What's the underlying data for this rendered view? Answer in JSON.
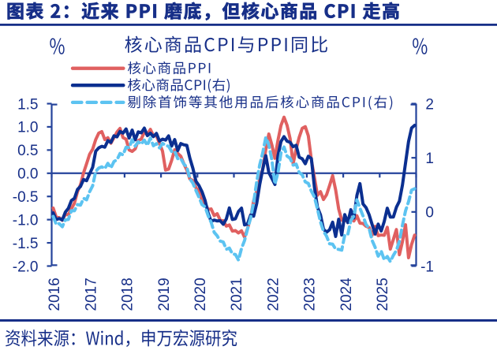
{
  "header": {
    "title": "图表 2：近来 PPI 磨底，但核心商品 CPI 走高"
  },
  "footer": {
    "source": "资料来源：Wind，申万宏源研究"
  },
  "colors": {
    "navy_text": "#172f88",
    "axis": "#24439b",
    "series_ppi": "#e06060",
    "series_cpi": "#0b2f90",
    "series_cpi_ex": "#5cc3f1",
    "background": "#ffffff"
  },
  "chart_data": {
    "type": "line",
    "title": "核心商品CPI与PPI同比",
    "x_unit": "month",
    "x_start": "2016-01",
    "x_end": "2025-12",
    "x_tick_labels": [
      "2016",
      "2017",
      "2018",
      "2019",
      "2020",
      "2021",
      "2022",
      "2023",
      "2024",
      "2025"
    ],
    "left_axis": {
      "label": "%",
      "min": -2.0,
      "max": 1.5,
      "tick_step": 0.5,
      "tick_labels": [
        "1.5",
        "1.0",
        "0.5",
        "0.0",
        "-0.5",
        "-1.0",
        "-1.5",
        "-2.0"
      ]
    },
    "right_axis": {
      "label": "%",
      "min": -1.0,
      "max": 2.0,
      "tick_step": 1.0,
      "tick_labels": [
        "2",
        "1",
        "0",
        "-1"
      ]
    },
    "grid": false,
    "legend_position": "top-left",
    "series": [
      {
        "name": "核心商品PPI",
        "axis": "left",
        "color": "#e06060",
        "style": "solid",
        "values": [
          -0.749,
          -0.947,
          -0.957,
          -1.015,
          -0.885,
          -0.896,
          -0.764,
          -0.641,
          -0.398,
          -0.245,
          0.009,
          0.206,
          0.411,
          0.519,
          0.726,
          0.865,
          0.898,
          0.726,
          0.766,
          0.647,
          0.766,
          0.888,
          0.966,
          0.767,
          0.735,
          0.503,
          0.47,
          0.525,
          0.704,
          0.738,
          0.887,
          0.829,
          0.947,
          0.809,
          0.807,
          0.644,
          0.474,
          0.07,
          0.089,
          0.277,
          0.505,
          0.427,
          0.369,
          0.209,
          0.069,
          -0.122,
          -0.159,
          -0.313,
          -0.382,
          -0.586,
          -0.649,
          -0.78,
          -0.769,
          -0.914,
          -0.872,
          -1.011,
          -1.023,
          -1.14,
          -1.114,
          -1.247,
          -1.236,
          -1.286,
          -1.239,
          -1.378,
          -1.189,
          -0.96,
          -0.592,
          -0.388,
          -0.127,
          0.092,
          0.513,
          0.846,
          0.61,
          0.323,
          0.707,
          1.03,
          1.209,
          1.034,
          0.747,
          0.202,
          0.523,
          0.776,
          0.969,
          1.004,
          0.808,
          0.291,
          -0.083,
          -0.475,
          -0.397,
          -0.566,
          -0.464,
          -0.264,
          -0.051,
          -0.36,
          -0.77,
          -1.012,
          -1.026,
          -1.018,
          -0.965,
          -1.029,
          -0.916,
          -1.076,
          -1.083,
          -1.143,
          -1.167,
          -1.337,
          -1.144,
          -1.345,
          -1.33,
          -1.337,
          -1.165,
          -1.635,
          -1.427,
          -1.213,
          -1.755,
          -1.471,
          -1.11,
          -1.821,
          -1.535,
          -1.334
        ]
      },
      {
        "name": "核心商品CPI(右)",
        "axis": "right",
        "color": "#0b2f90",
        "style": "solid",
        "values": [
          -0.018,
          -0.141,
          -0.122,
          -0.149,
          -0.004,
          0.067,
          0.21,
          0.25,
          0.415,
          0.472,
          0.599,
          0.577,
          0.705,
          0.825,
          1.121,
          1.184,
          1.212,
          1.196,
          1.316,
          1.285,
          1.406,
          1.387,
          1.487,
          1.456,
          1.533,
          1.365,
          1.512,
          1.332,
          1.478,
          1.461,
          1.548,
          1.41,
          1.455,
          1.392,
          1.45,
          1.309,
          1.344,
          1.327,
          1.405,
          1.216,
          1.336,
          1.133,
          1.263,
          1.24,
          1.23,
          0.993,
          0.804,
          0.568,
          0.487,
          0.373,
          0.214,
          -0.018,
          -0.176,
          -0.15,
          -0.167,
          -0.163,
          -0.228,
          -0.13,
          0.073,
          -0.139,
          -0.126,
          0.007,
          0.07,
          -0.24,
          -0.22,
          -0.058,
          -0.078,
          0.153,
          0.508,
          0.791,
          1.039,
          0.726,
          0.619,
          0.507,
          1.036,
          1.301,
          1.391,
          1.306,
          1.286,
          1.205,
          1.23,
          1.01,
          0.982,
          0.89,
          1.028,
          0.987,
          0.463,
          0.086,
          -0.053,
          -0.319,
          -0.375,
          -0.33,
          -0.189,
          -0.453,
          -0.135,
          -0.426,
          -0.05,
          -0.198,
          0.04,
          -0.111,
          0.305,
          0.523,
          0.148,
          0.08,
          -0.048,
          -0.231,
          -0.409,
          -0.225,
          -0.353,
          -0.176,
          0.069,
          -0.095,
          -0.093,
          0.086,
          0.2,
          0.5,
          0.9,
          1.3,
          1.55,
          1.6
        ]
      },
      {
        "name": "剔除首饰等其他用品后核心商品CPI(右)",
        "axis": "right",
        "color": "#5cc3f1",
        "style": "dashed",
        "values": [
          -0.083,
          -0.232,
          -0.217,
          -0.274,
          -0.147,
          -0.14,
          0.023,
          0.021,
          0.136,
          0.125,
          0.251,
          0.224,
          0.374,
          0.484,
          0.748,
          0.81,
          0.833,
          0.8,
          0.897,
          0.812,
          0.93,
          0.964,
          1.079,
          1.054,
          1.196,
          1.188,
          1.332,
          1.215,
          1.296,
          1.252,
          1.327,
          1.229,
          1.366,
          1.222,
          1.261,
          1.183,
          1.267,
          1.231,
          1.213,
          1.117,
          1.122,
          0.984,
          0.99,
          0.885,
          0.829,
          0.612,
          0.531,
          0.396,
          0.272,
          0.135,
          0.093,
          -0.066,
          -0.191,
          -0.376,
          -0.442,
          -0.539,
          -0.556,
          -0.69,
          -0.668,
          -0.775,
          -0.786,
          -0.89,
          -0.675,
          -0.529,
          -0.314,
          -0.113,
          0.176,
          0.554,
          0.87,
          1.094,
          1.379,
          1.234,
          0.959,
          0.518,
          0.717,
          1.091,
          1.199,
          1.031,
          0.991,
          0.865,
          0.884,
          0.728,
          0.685,
          0.555,
          0.526,
          0.384,
          0.278,
          0.056,
          -0.184,
          -0.359,
          -0.448,
          -0.588,
          -0.596,
          -0.687,
          -0.692,
          -0.707,
          -0.426,
          -0.416,
          -0.159,
          -0.073,
          0.224,
          0.07,
          -0.072,
          -0.231,
          -0.3,
          -0.526,
          -0.653,
          -0.818,
          -0.723,
          -0.885,
          -0.823,
          -0.918,
          -0.802,
          -0.711,
          -0.539,
          -0.245,
          0.017,
          0.189,
          0.403,
          0.429
        ]
      }
    ]
  }
}
